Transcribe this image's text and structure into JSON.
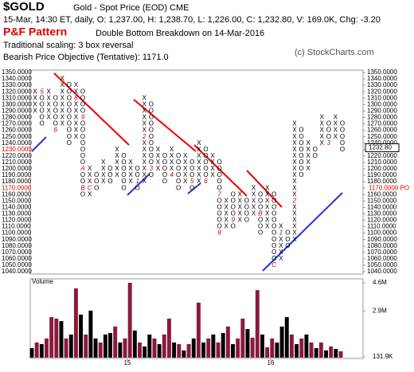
{
  "header": {
    "symbol": "$GOLD",
    "name": "Gold - Spot Price (EOD)  CME",
    "quote": "15-Mar, 14:30 ET, daily, O: 1,237.00, H: 1,238.70, L: 1,226.00, C: 1,232.80, V: 169.0K, Chg: -3.20",
    "pattern_label": "P&F Pattern",
    "pattern": "Double Bottom Breakdown on 14-Mar-2016",
    "scaling": "Traditional scaling: 3 box reversal",
    "objective": "Bearish Price Objective (Tentative): 1171.0",
    "copyright": "(c) StockCharts.com"
  },
  "chart_data": [
    {
      "type": "pnf",
      "x_color": "#000",
      "o_color": "#000",
      "marker_color": "#c00",
      "ylim": [
        1040,
        1350
      ],
      "yticks": [
        {
          "value": 1350,
          "label": "1350.0000"
        },
        {
          "value": 1340,
          "label": "1340.0000"
        },
        {
          "value": 1330,
          "label": "1330.0000"
        },
        {
          "value": 1320,
          "label": "1320.0000"
        },
        {
          "value": 1310,
          "label": "1310.0000"
        },
        {
          "value": 1300,
          "label": "1300.0000"
        },
        {
          "value": 1290,
          "label": "1290.0000"
        },
        {
          "value": 1280,
          "label": "1280.0000"
        },
        {
          "value": 1270,
          "label": "1270.0000"
        },
        {
          "value": 1260,
          "label": "1260.0000"
        },
        {
          "value": 1250,
          "label": "1250.0000"
        },
        {
          "value": 1240,
          "label": "1240.0000"
        },
        {
          "value": 1230,
          "label": "1230.0000",
          "color": "#d00"
        },
        {
          "value": 1220,
          "label": "1220.0000"
        },
        {
          "value": 1210,
          "label": "1210.0000"
        },
        {
          "value": 1200,
          "label": "1200.0000"
        },
        {
          "value": 1190,
          "label": "1190.0000"
        },
        {
          "value": 1180,
          "label": "1180.0000"
        },
        {
          "value": 1170,
          "label": "1170.0000",
          "color": "#d00"
        },
        {
          "value": 1160,
          "label": "1160.0000"
        },
        {
          "value": 1150,
          "label": "1150.0000"
        },
        {
          "value": 1140,
          "label": "1140.0000"
        },
        {
          "value": 1130,
          "label": "1130.0000"
        },
        {
          "value": 1120,
          "label": "1120.0000"
        },
        {
          "value": 1110,
          "label": "1110.0000"
        },
        {
          "value": 1100,
          "label": "1100.0000"
        },
        {
          "value": 1090,
          "label": "1090.0000"
        },
        {
          "value": 1080,
          "label": "1080.0000"
        },
        {
          "value": 1070,
          "label": "1070.0000"
        },
        {
          "value": 1060,
          "label": "1060.0000"
        },
        {
          "value": 1050,
          "label": "1050.0000"
        },
        {
          "value": 1040,
          "label": "1040.0000"
        }
      ],
      "box_size": 10,
      "right_annotations": [
        {
          "value": 1232.8,
          "label": "1232.80",
          "color": "#000"
        },
        {
          "value": 1170,
          "label": "1170.0000 PO",
          "color": "#d00"
        }
      ],
      "columns": [
        {
          "type": "X",
          "low": 1290,
          "high": 1320
        },
        {
          "type": "O",
          "low": 1270,
          "high": 1310,
          "markers": [
            {
              "price": 1320,
              "label": "5"
            }
          ]
        },
        {
          "type": "X",
          "low": 1280,
          "high": 1320
        },
        {
          "type": "O",
          "low": 1260,
          "high": 1310,
          "markers": [
            {
              "price": 1260,
              "label": "6"
            }
          ]
        },
        {
          "type": "X",
          "low": 1270,
          "high": 1340
        },
        {
          "type": "O",
          "low": 1240,
          "high": 1330
        },
        {
          "type": "X",
          "low": 1250,
          "high": 1330,
          "markers": [
            {
              "price": 1310,
              "label": "8"
            }
          ]
        },
        {
          "type": "O",
          "low": 1160,
          "high": 1320,
          "markers": [
            {
              "price": 1280,
              "label": "9"
            },
            {
              "price": 1200,
              "label": "A"
            },
            {
              "price": 1170,
              "label": "B"
            }
          ]
        },
        {
          "type": "X",
          "low": 1160,
          "high": 1200,
          "markers": [
            {
              "price": 1170,
              "label": "C"
            }
          ]
        },
        {
          "type": "O",
          "low": 1170,
          "high": 1190
        },
        {
          "type": "X",
          "low": 1180,
          "high": 1210
        },
        {
          "type": "O",
          "low": 1180,
          "high": 1200
        },
        {
          "type": "X",
          "low": 1190,
          "high": 1230
        },
        {
          "type": "O",
          "low": 1170,
          "high": 1220
        },
        {
          "type": "X",
          "low": 1180,
          "high": 1210
        },
        {
          "type": "O",
          "low": 1170,
          "high": 1200,
          "markers": [
            {
              "price": 1180,
              "label": "1"
            }
          ]
        },
        {
          "type": "X",
          "low": 1180,
          "high": 1310,
          "markers": [
            {
              "price": 1250,
              "label": "2"
            }
          ]
        },
        {
          "type": "O",
          "low": 1190,
          "high": 1300,
          "markers": [
            {
              "price": 1200,
              "label": "3"
            }
          ]
        },
        {
          "type": "X",
          "low": 1200,
          "high": 1230
        },
        {
          "type": "O",
          "low": 1180,
          "high": 1220
        },
        {
          "type": "X",
          "low": 1190,
          "high": 1230,
          "markers": [
            {
              "price": 1190,
              "label": "4"
            }
          ]
        },
        {
          "type": "O",
          "low": 1170,
          "high": 1220
        },
        {
          "type": "X",
          "low": 1180,
          "high": 1220
        },
        {
          "type": "O",
          "low": 1170,
          "high": 1210,
          "markers": [
            {
              "price": 1180,
              "label": "5"
            }
          ]
        },
        {
          "type": "X",
          "low": 1180,
          "high": 1240
        },
        {
          "type": "O",
          "low": 1180,
          "high": 1230,
          "markers": [
            {
              "price": 1180,
              "label": "6"
            }
          ]
        },
        {
          "type": "X",
          "low": 1190,
          "high": 1220
        },
        {
          "type": "O",
          "low": 1100,
          "high": 1210,
          "markers": [
            {
              "price": 1160,
              "label": "7"
            },
            {
              "price": 1100,
              "label": "8"
            }
          ]
        },
        {
          "type": "X",
          "low": 1110,
          "high": 1150
        },
        {
          "type": "O",
          "low": 1110,
          "high": 1160,
          "markers": [
            {
              "price": 1120,
              "label": "9"
            }
          ]
        },
        {
          "type": "X",
          "low": 1120,
          "high": 1160
        },
        {
          "type": "O",
          "low": 1120,
          "high": 1150
        },
        {
          "type": "X",
          "low": 1130,
          "high": 1170
        },
        {
          "type": "O",
          "low": 1100,
          "high": 1160,
          "markers": [
            {
              "price": 1130,
              "label": "B"
            }
          ]
        },
        {
          "type": "X",
          "low": 1110,
          "high": 1170
        },
        {
          "type": "O",
          "low": 1050,
          "high": 1160,
          "markers": [
            {
              "price": 1050,
              "label": "C"
            }
          ]
        },
        {
          "type": "X",
          "low": 1060,
          "high": 1110,
          "markers": [
            {
              "price": 1100,
              "label": "1"
            }
          ]
        },
        {
          "type": "O",
          "low": 1080,
          "high": 1100
        },
        {
          "type": "X",
          "low": 1090,
          "high": 1270,
          "markers": [
            {
              "price": 1150,
              "label": "2"
            }
          ]
        },
        {
          "type": "O",
          "low": 1190,
          "high": 1260
        },
        {
          "type": "X",
          "low": 1200,
          "high": 1240
        },
        {
          "type": "O",
          "low": 1220,
          "high": 1230
        },
        {
          "type": "X",
          "low": 1240,
          "high": 1280
        },
        {
          "type": "O",
          "low": 1240,
          "high": 1270,
          "markers": [
            {
              "price": 1240,
              "label": "3"
            }
          ]
        },
        {
          "type": "X",
          "low": 1250,
          "high": 1280
        },
        {
          "type": "O",
          "low": 1230,
          "high": 1270
        }
      ]
    },
    {
      "type": "bar",
      "title": "Volume",
      "ylim": [
        0.1319,
        4.6
      ],
      "yticks": [
        {
          "value": 4.6,
          "label": "4.6M"
        },
        {
          "value": 2.9,
          "label": "2.9M"
        },
        {
          "value": 0.1319,
          "label": "131.9K"
        }
      ],
      "time_labels": [
        "15",
        "16"
      ],
      "up_color": "#8b1a3a",
      "down_color": "#000",
      "values": [
        0.66,
        1.0,
        0.9,
        1.24,
        2.53,
        2.44,
        2.29,
        1.24,
        1.48,
        4.26,
        2.68,
        1.48,
        2.92,
        1.24,
        1.0,
        1.48,
        1.57,
        1.96,
        1.0,
        1.24,
        4.6,
        1.72,
        1.0,
        0.76,
        1.48,
        1.24,
        0.9,
        1.48,
        2.44,
        1.0,
        0.9,
        0.52,
        0.9,
        1.24,
        3.4,
        1.0,
        1.24,
        1.48,
        1.0,
        1.57,
        1.96,
        0.9,
        1.24,
        2.44,
        1.81,
        1.29,
        4.16,
        1.48,
        0.71,
        1.24,
        1.0,
        1.96,
        2.53,
        1.48,
        0.9,
        1.24,
        1.48,
        1.0,
        0.66,
        1.0,
        0.52,
        0.76,
        0.61,
        0.47
      ],
      "colors": [
        "k",
        "r",
        "k",
        "r",
        "r",
        "r",
        "k",
        "r",
        "k",
        "r",
        "k",
        "r",
        "k",
        "k",
        "r",
        "k",
        "k",
        "r",
        "k",
        "r",
        "r",
        "k",
        "r",
        "k",
        "k",
        "r",
        "k",
        "r",
        "r",
        "k",
        "r",
        "k",
        "r",
        "k",
        "r",
        "k",
        "r",
        "k",
        "r",
        "k",
        "r",
        "k",
        "r",
        "r",
        "k",
        "r",
        "r",
        "k",
        "r",
        "r",
        "k",
        "k",
        "k",
        "r",
        "k",
        "r",
        "k",
        "r",
        "k",
        "r",
        "k",
        "r",
        "k",
        "r"
      ]
    }
  ]
}
